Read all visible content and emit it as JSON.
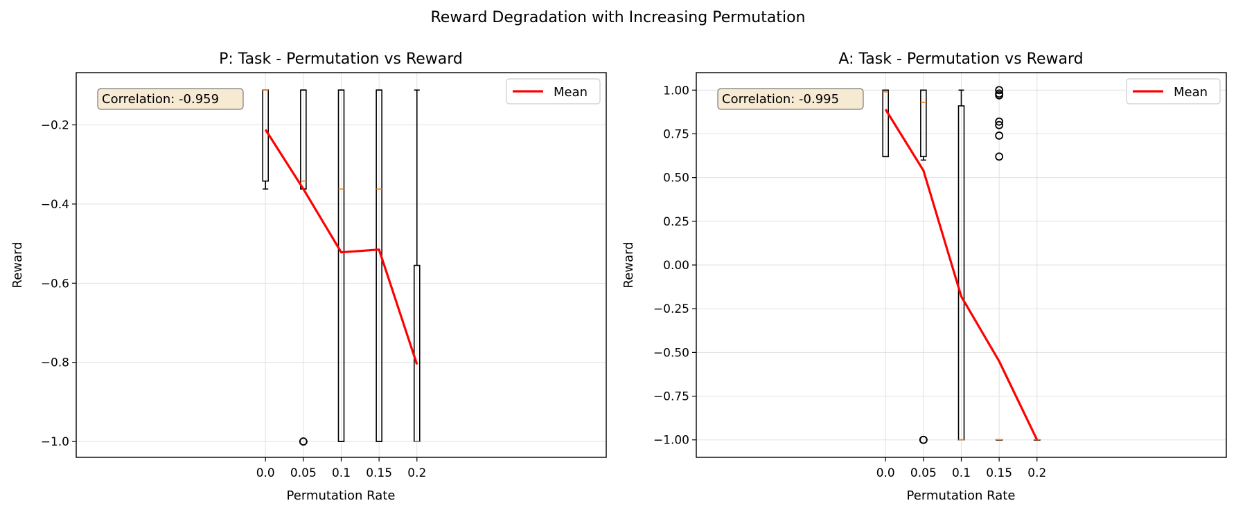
{
  "chart_data": {
    "suptitle": "Reward Degradation with Increasing Permutation",
    "panels": [
      {
        "type": "box",
        "title": "P: Task - Permutation vs Reward",
        "xlabel": "Permutation Rate",
        "ylabel": "Reward",
        "xlim": [
          -0.25,
          0.45
        ],
        "ylim": [
          -1.04,
          -0.068
        ],
        "xticks": [
          0.0,
          0.05,
          0.1,
          0.15,
          0.2
        ],
        "xtick_labels": [
          "0.0",
          "0.05",
          "0.1",
          "0.15",
          "0.2"
        ],
        "yticks": [
          -0.2,
          -0.4,
          -0.6,
          -0.8,
          -1.0
        ],
        "ytick_labels": [
          "−0.2",
          "−0.4",
          "−0.6",
          "−0.8",
          "−1.0"
        ],
        "correlation_text": "Correlation: -0.959",
        "legend_label": "Mean",
        "boxes": [
          {
            "x": 0.0,
            "q1": -0.342,
            "q3": -0.112,
            "median": -0.112,
            "whislo": -0.362,
            "whishi": -0.112,
            "fliers": []
          },
          {
            "x": 0.05,
            "q1": -0.362,
            "q3": -0.112,
            "median": -0.342,
            "whislo": -0.362,
            "whishi": -0.112,
            "fliers": [
              -1.0,
              -1.0
            ]
          },
          {
            "x": 0.1,
            "q1": -1.0,
            "q3": -0.112,
            "median": -0.362,
            "whislo": -1.0,
            "whishi": -0.112,
            "fliers": []
          },
          {
            "x": 0.15,
            "q1": -1.0,
            "q3": -0.112,
            "median": -0.362,
            "whislo": -1.0,
            "whishi": -0.112,
            "fliers": []
          },
          {
            "x": 0.2,
            "q1": -1.0,
            "q3": -0.555,
            "median": -1.0,
            "whislo": -1.0,
            "whishi": -0.112,
            "fliers": []
          }
        ],
        "mean": {
          "x": [
            0.0,
            0.05,
            0.1,
            0.15,
            0.2
          ],
          "y": [
            -0.212,
            -0.362,
            -0.522,
            -0.515,
            -0.805
          ]
        }
      },
      {
        "type": "box",
        "title": "A: Task - Permutation vs Reward",
        "xlabel": "Permutation Rate",
        "ylabel": "Reward",
        "xlim": [
          -0.25,
          0.45
        ],
        "ylim": [
          -1.1,
          1.1
        ],
        "xticks": [
          0.0,
          0.05,
          0.1,
          0.15,
          0.2
        ],
        "xtick_labels": [
          "0.0",
          "0.05",
          "0.1",
          "0.15",
          "0.2"
        ],
        "yticks": [
          1.0,
          0.75,
          0.5,
          0.25,
          0.0,
          -0.25,
          -0.5,
          -0.75,
          -1.0
        ],
        "ytick_labels": [
          "1.00",
          "0.75",
          "0.50",
          "0.25",
          "0.00",
          "−0.25",
          "−0.50",
          "−0.75",
          "−1.00"
        ],
        "correlation_text": "Correlation: -0.995",
        "legend_label": "Mean",
        "boxes": [
          {
            "x": 0.0,
            "q1": 0.62,
            "q3": 1.0,
            "median": 0.99,
            "whislo": 0.62,
            "whishi": 1.0,
            "fliers": []
          },
          {
            "x": 0.05,
            "q1": 0.62,
            "q3": 1.0,
            "median": 0.93,
            "whislo": 0.6,
            "whishi": 1.0,
            "fliers": [
              -1.0,
              -1.0
            ]
          },
          {
            "x": 0.1,
            "q1": -1.0,
            "q3": 0.91,
            "median": -1.0,
            "whislo": -1.0,
            "whishi": 1.0,
            "fliers": []
          },
          {
            "x": 0.15,
            "q1": -1.0,
            "q3": -1.0,
            "median": -1.0,
            "whislo": -1.0,
            "whishi": -1.0,
            "fliers": [
              1.0,
              0.98,
              0.97,
              0.82,
              0.8,
              0.74,
              0.62
            ]
          },
          {
            "x": 0.2,
            "q1": -1.0,
            "q3": -1.0,
            "median": -1.0,
            "whislo": -1.0,
            "whishi": -1.0,
            "fliers": []
          }
        ],
        "mean": {
          "x": [
            0.0,
            0.05,
            0.1,
            0.15,
            0.2
          ],
          "y": [
            0.89,
            0.54,
            -0.18,
            -0.55,
            -1.0
          ]
        }
      }
    ]
  }
}
